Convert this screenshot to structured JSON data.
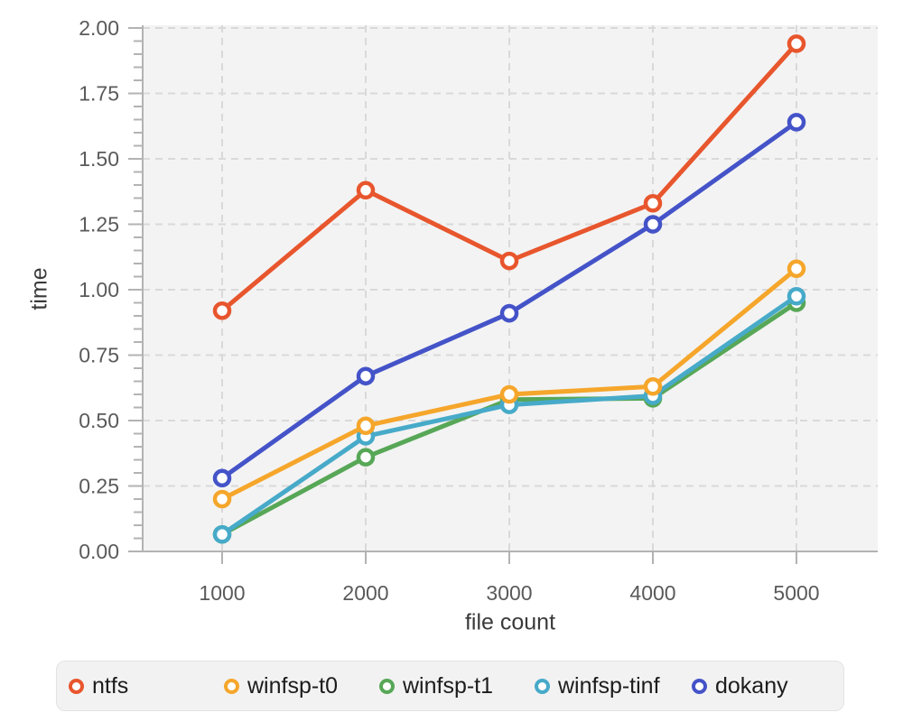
{
  "chart_data": {
    "type": "line",
    "title": "",
    "xlabel": "file count",
    "ylabel": "time",
    "x": [
      1000,
      2000,
      3000,
      4000,
      5000
    ],
    "x_tick_labels": [
      "1000",
      "2000",
      "3000",
      "4000",
      "5000"
    ],
    "y_tick_labels": [
      "0.00",
      "0.25",
      "0.50",
      "0.75",
      "1.00",
      "1.25",
      "1.50",
      "1.75",
      "2.00"
    ],
    "y_major_step": 0.25,
    "y_minor_step": 0.05,
    "xlim": [
      450,
      5560
    ],
    "ylim": [
      0,
      2.0
    ],
    "grid": "dashed",
    "legend_position": "bottom",
    "series": [
      {
        "name": "ntfs",
        "color": "#e8562d",
        "values": [
          0.92,
          1.38,
          1.11,
          1.33,
          1.94
        ]
      },
      {
        "name": "winfsp-t0",
        "color": "#f5a62b",
        "values": [
          0.2,
          0.48,
          0.6,
          0.63,
          1.08
        ]
      },
      {
        "name": "winfsp-t1",
        "color": "#57a757",
        "values": [
          0.065,
          0.36,
          0.58,
          0.585,
          0.95
        ]
      },
      {
        "name": "winfsp-tinf",
        "color": "#47aac9",
        "values": [
          0.065,
          0.44,
          0.56,
          0.595,
          0.975
        ]
      },
      {
        "name": "dokany",
        "color": "#4453c8",
        "values": [
          0.28,
          0.67,
          0.91,
          1.25,
          1.64
        ]
      }
    ],
    "style": {
      "plot_background": "#f3f3f3",
      "grid_color": "#d9d9d9",
      "axis_color": "#b3b3b3",
      "tick_label_color": "#5a5a5a",
      "axis_title_color": "#3a3a3a",
      "legend_background": "#f2f2f2",
      "legend_border": "#e3e3e3",
      "legend_text_color": "#1c1c1c",
      "marker_fill": "#ffffff"
    }
  }
}
